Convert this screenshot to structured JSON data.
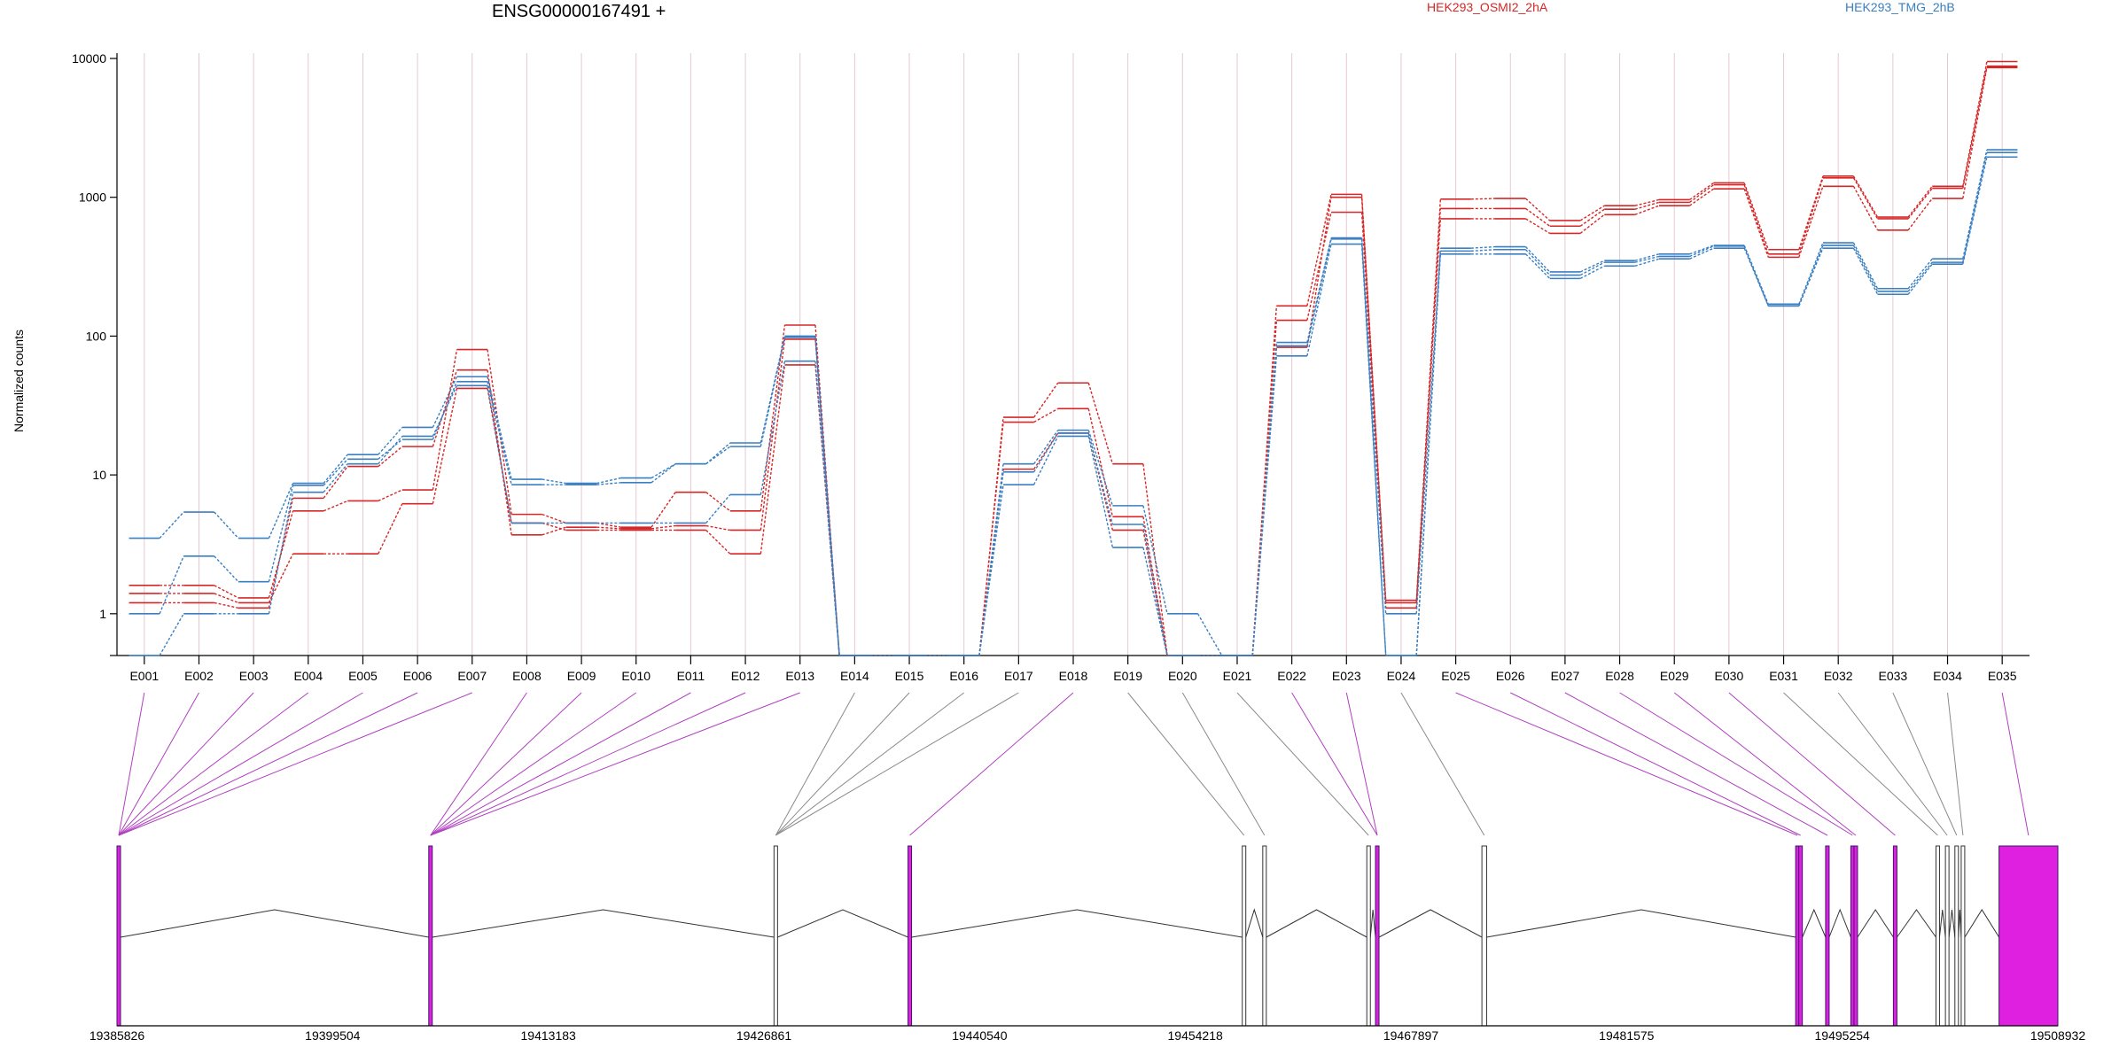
{
  "gene_title": "ENSG00000167491 +",
  "colors": {
    "OSMI2": "#d62728",
    "TMG": "#3a7fc1",
    "exon_significant": "#e020e0",
    "exon_normal": "#ffffff",
    "grid": "#e6c8d4",
    "axis": "#000000"
  },
  "chart_data": {
    "type": "line",
    "ylabel": "Normalized counts",
    "y_scale": "log",
    "ylim": [
      0.5,
      10000
    ],
    "y_ticks": [
      1,
      10,
      100,
      1000,
      10000
    ],
    "y_tick_labels": [
      "1",
      "10",
      "100",
      "1000",
      "10000"
    ],
    "categories": [
      "E001",
      "E002",
      "E003",
      "E004",
      "E005",
      "E006",
      "E007",
      "E008",
      "E009",
      "E010",
      "E011",
      "E012",
      "E013",
      "E014",
      "E015",
      "E016",
      "E017",
      "E018",
      "E019",
      "E020",
      "E021",
      "E022",
      "E023",
      "E024",
      "E025",
      "E026",
      "E027",
      "E028",
      "E029",
      "E030",
      "E031",
      "E032",
      "E033",
      "E034",
      "E035"
    ],
    "legend": [
      {
        "name": "HEK293_OSMI2_2hA",
        "color": "#d62728"
      },
      {
        "name": "HEK293_TMG_2hB",
        "color": "#3a7fc1"
      }
    ],
    "series": [
      {
        "group": "OSMI2",
        "values": [
          1.6,
          1.6,
          1.3,
          5.5,
          6.5,
          7.8,
          80,
          5.2,
          4.5,
          4.2,
          7.5,
          5.5,
          120,
          0.5,
          0.5,
          0.5,
          26,
          46,
          12,
          0.5,
          0.5,
          165,
          1050,
          1.25,
          970,
          980,
          680,
          870,
          960,
          1270,
          420,
          1420,
          720,
          1200,
          9500
        ]
      },
      {
        "group": "OSMI2",
        "values": [
          1.2,
          1.2,
          1.1,
          6.8,
          11.5,
          16,
          57,
          3.7,
          4.2,
          4.1,
          4.3,
          4.0,
          95,
          0.5,
          0.5,
          0.5,
          24,
          30,
          5.0,
          0.5,
          0.5,
          130,
          780,
          1.1,
          830,
          830,
          620,
          820,
          920,
          1230,
          390,
          1380,
          700,
          1160,
          8800
        ]
      },
      {
        "group": "OSMI2",
        "values": [
          1.4,
          1.4,
          1.2,
          2.7,
          2.7,
          6.2,
          42,
          4.5,
          4.0,
          4.0,
          4.0,
          2.7,
          62,
          0.5,
          0.5,
          0.5,
          11,
          20,
          4.0,
          0.5,
          0.5,
          83,
          1000,
          1.2,
          700,
          700,
          550,
          750,
          870,
          1150,
          370,
          1200,
          580,
          980,
          8600
        ]
      },
      {
        "group": "TMG",
        "values": [
          3.5,
          5.4,
          3.5,
          8.7,
          14,
          22,
          51,
          9.3,
          8.7,
          9.5,
          12,
          17,
          100,
          0.5,
          0.5,
          0.5,
          12,
          21,
          6.0,
          1.0,
          0.5,
          90,
          510,
          0.5,
          430,
          440,
          290,
          350,
          390,
          450,
          170,
          470,
          220,
          360,
          2200
        ]
      },
      {
        "group": "TMG",
        "values": [
          1.0,
          2.6,
          1.7,
          8.4,
          13,
          18,
          47,
          8.5,
          8.5,
          8.8,
          12,
          16,
          98,
          0.5,
          0.5,
          0.5,
          10.5,
          20,
          4.4,
          0.5,
          0.5,
          85,
          500,
          1.0,
          410,
          420,
          275,
          340,
          375,
          445,
          165,
          450,
          210,
          340,
          2100
        ]
      },
      {
        "group": "TMG",
        "values": [
          0.5,
          1.0,
          1.0,
          7.5,
          12,
          19,
          44,
          4.5,
          4.5,
          4.5,
          4.5,
          7.2,
          66,
          0.5,
          0.5,
          0.5,
          8.5,
          19,
          3.0,
          0.5,
          0.5,
          72,
          460,
          0.5,
          390,
          390,
          260,
          320,
          360,
          430,
          165,
          430,
          200,
          330,
          1950
        ]
      }
    ],
    "genomic_axis": {
      "range": [
        19385826,
        19508932
      ],
      "tick_values": [
        19385826,
        19399504,
        19413183,
        19426861,
        19440540,
        19454218,
        19467897,
        19481575,
        19495254,
        19508932
      ],
      "tick_labels": [
        "19385826",
        "19399504",
        "19413183",
        "19426861",
        "19440540",
        "19454218",
        "19467897",
        "19481575",
        "19495254",
        "19508932"
      ]
    },
    "exons": [
      {
        "id": "E001",
        "start": 19385826,
        "end": 19385900,
        "significant": true
      },
      {
        "id": "E002",
        "start": 19385826,
        "end": 19385900,
        "significant": true
      },
      {
        "id": "E003",
        "start": 19385826,
        "end": 19385900,
        "significant": true
      },
      {
        "id": "E004",
        "start": 19385826,
        "end": 19385900,
        "significant": true
      },
      {
        "id": "E005",
        "start": 19385826,
        "end": 19385900,
        "significant": true
      },
      {
        "id": "E006",
        "start": 19385826,
        "end": 19385900,
        "significant": true
      },
      {
        "id": "E007",
        "start": 19385826,
        "end": 19385900,
        "significant": true
      },
      {
        "id": "E008",
        "start": 19405600,
        "end": 19405680,
        "significant": true
      },
      {
        "id": "E009",
        "start": 19405600,
        "end": 19405680,
        "significant": true
      },
      {
        "id": "E010",
        "start": 19405600,
        "end": 19405680,
        "significant": true
      },
      {
        "id": "E011",
        "start": 19405600,
        "end": 19405680,
        "significant": true
      },
      {
        "id": "E012",
        "start": 19405600,
        "end": 19405680,
        "significant": true
      },
      {
        "id": "E013",
        "start": 19405600,
        "end": 19405680,
        "significant": true
      },
      {
        "id": "E014",
        "start": 19427500,
        "end": 19427600,
        "significant": false
      },
      {
        "id": "E015",
        "start": 19427500,
        "end": 19427600,
        "significant": false
      },
      {
        "id": "E016",
        "start": 19427500,
        "end": 19427600,
        "significant": false
      },
      {
        "id": "E017",
        "start": 19427500,
        "end": 19427600,
        "significant": false
      },
      {
        "id": "E018",
        "start": 19436000,
        "end": 19436100,
        "significant": true
      },
      {
        "id": "E019",
        "start": 19457200,
        "end": 19457300,
        "significant": false
      },
      {
        "id": "E020",
        "start": 19458500,
        "end": 19458600,
        "significant": false
      },
      {
        "id": "E021",
        "start": 19465100,
        "end": 19465200,
        "significant": false
      },
      {
        "id": "E022",
        "start": 19465650,
        "end": 19465750,
        "significant": true
      },
      {
        "id": "E023",
        "start": 19465650,
        "end": 19465750,
        "significant": true
      },
      {
        "id": "E024",
        "start": 19472400,
        "end": 19472700,
        "significant": false
      },
      {
        "id": "E025",
        "start": 19492300,
        "end": 19492400,
        "significant": true
      },
      {
        "id": "E026",
        "start": 19492500,
        "end": 19492600,
        "significant": true
      },
      {
        "id": "E027",
        "start": 19494200,
        "end": 19494300,
        "significant": true
      },
      {
        "id": "E028",
        "start": 19495800,
        "end": 19495900,
        "significant": true
      },
      {
        "id": "E029",
        "start": 19496000,
        "end": 19496100,
        "significant": true
      },
      {
        "id": "E030",
        "start": 19498500,
        "end": 19498600,
        "significant": true
      },
      {
        "id": "E031",
        "start": 19501200,
        "end": 19501300,
        "significant": false
      },
      {
        "id": "E032",
        "start": 19501800,
        "end": 19501900,
        "significant": false
      },
      {
        "id": "E033",
        "start": 19502400,
        "end": 19502500,
        "significant": false
      },
      {
        "id": "E034",
        "start": 19502800,
        "end": 19502900,
        "significant": false
      },
      {
        "id": "E035",
        "start": 19505200,
        "end": 19508932,
        "significant": true
      }
    ]
  }
}
